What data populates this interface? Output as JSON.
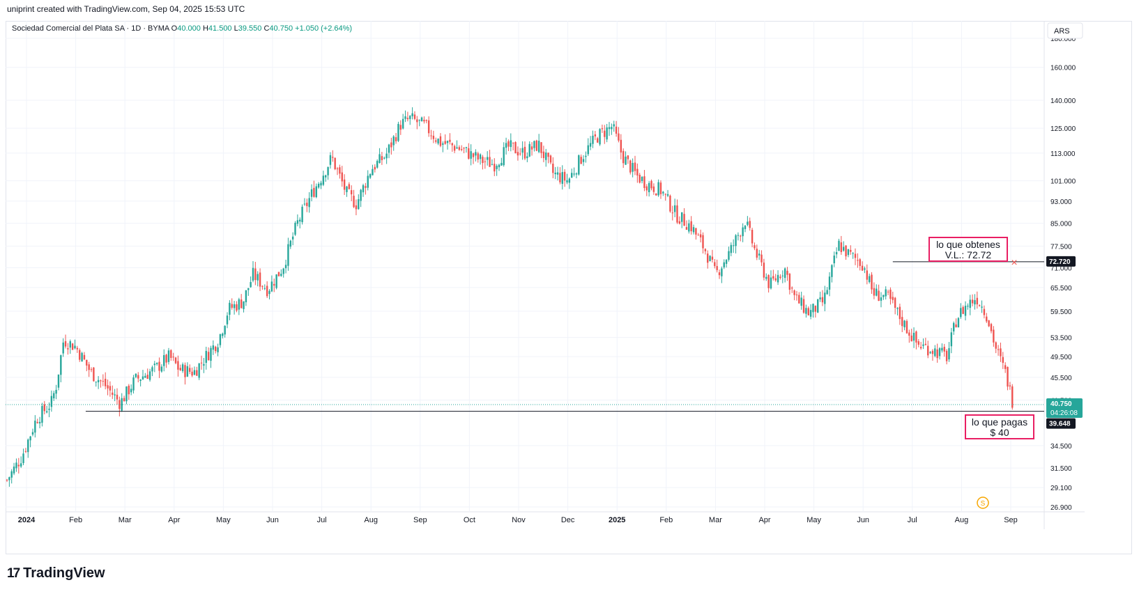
{
  "header": {
    "credit": "uniprint created with TradingView.com, Sep 04, 2025 15:53 UTC"
  },
  "legend": {
    "symbol": "Sociedad Comercial del Plata SA · 1D · BYMA",
    "o_label": "O",
    "o": "40.000",
    "h_label": "H",
    "h": "41.500",
    "l_label": "L",
    "l": "39.550",
    "c_label": "C",
    "c": "40.750",
    "change": "+1.050 (+2.64%)"
  },
  "currency": "ARS",
  "logo": {
    "text": "TradingView",
    "icon": "tv-logo-icon"
  },
  "colors": {
    "up": "#26a69a",
    "down": "#ef5350",
    "grid": "#f0f3fa",
    "price_badge": "#26a69a",
    "annotation_border": "#e91e63"
  },
  "chart_data": {
    "type": "candlestick",
    "scale": "log",
    "ylim": [
      26.9,
      180
    ],
    "y_ticks": [
      180,
      160,
      140,
      125,
      113,
      101,
      93,
      85,
      77.5,
      71,
      65.5,
      59.5,
      53.5,
      49.5,
      45.5,
      41.5,
      34.5,
      31.5,
      29.1,
      26.9
    ],
    "y_tick_labels": [
      "180.000",
      "160.000",
      "140.000",
      "125.000",
      "113.000",
      "101.000",
      "93.000",
      "85.000",
      "77.500",
      "71.000",
      "65.500",
      "59.500",
      "53.500",
      "49.500",
      "45.500",
      "41.500",
      "34.500",
      "31.500",
      "29.100",
      "26.900"
    ],
    "x_labels": [
      "2024",
      "Feb",
      "Mar",
      "Apr",
      "May",
      "Jun",
      "Jul",
      "Aug",
      "Sep",
      "Oct",
      "Nov",
      "Dec",
      "2025",
      "Feb",
      "Mar",
      "Apr",
      "May",
      "Jun",
      "Jul",
      "Aug",
      "Sep"
    ],
    "x_label_month_index": [
      0,
      1,
      2,
      3,
      4,
      5,
      6,
      7,
      8,
      9,
      10,
      11,
      12,
      13,
      14,
      15,
      16,
      17,
      18,
      19,
      20
    ],
    "approx_close_path": [
      [
        0.0,
        30.0
      ],
      [
        0.3,
        33.0
      ],
      [
        0.6,
        38.5
      ],
      [
        0.9,
        41.0
      ],
      [
        1.0,
        44.0
      ],
      [
        1.15,
        53.0
      ],
      [
        1.4,
        51.5
      ],
      [
        1.7,
        46.5
      ],
      [
        2.0,
        44.0
      ],
      [
        2.3,
        41.0
      ],
      [
        2.6,
        45.0
      ],
      [
        3.0,
        47.0
      ],
      [
        3.3,
        49.5
      ],
      [
        3.5,
        47.0
      ],
      [
        3.8,
        46.5
      ],
      [
        4.0,
        49.0
      ],
      [
        4.3,
        53.0
      ],
      [
        4.5,
        60.0
      ],
      [
        4.8,
        62.0
      ],
      [
        5.0,
        69.0
      ],
      [
        5.3,
        65.0
      ],
      [
        5.6,
        71.0
      ],
      [
        5.9,
        85.0
      ],
      [
        6.2,
        96.0
      ],
      [
        6.4,
        103.0
      ],
      [
        6.6,
        111.0
      ],
      [
        6.9,
        96.0
      ],
      [
        7.1,
        92.0
      ],
      [
        7.4,
        106.0
      ],
      [
        7.7,
        112.0
      ],
      [
        8.0,
        127.0
      ],
      [
        8.2,
        130.0
      ],
      [
        8.5,
        126.0
      ],
      [
        8.8,
        118.0
      ],
      [
        9.0,
        117.0
      ],
      [
        9.3,
        114.0
      ],
      [
        9.6,
        110.0
      ],
      [
        9.9,
        108.0
      ],
      [
        10.2,
        116.0
      ],
      [
        10.5,
        113.0
      ],
      [
        10.8,
        117.0
      ],
      [
        11.1,
        104.0
      ],
      [
        11.4,
        101.0
      ],
      [
        11.7,
        112.0
      ],
      [
        12.0,
        121.0
      ],
      [
        12.3,
        126.0
      ],
      [
        12.5,
        112.0
      ],
      [
        12.8,
        103.0
      ],
      [
        13.0,
        100.0
      ],
      [
        13.3,
        97.0
      ],
      [
        13.6,
        88.0
      ],
      [
        13.9,
        84.0
      ],
      [
        14.2,
        76.0
      ],
      [
        14.4,
        69.0
      ],
      [
        14.7,
        76.0
      ],
      [
        15.0,
        86.0
      ],
      [
        15.2,
        76.0
      ],
      [
        15.5,
        66.0
      ],
      [
        15.8,
        71.0
      ],
      [
        16.0,
        63.0
      ],
      [
        16.3,
        59.0
      ],
      [
        16.6,
        62.0
      ],
      [
        16.9,
        78.0
      ],
      [
        17.1,
        75.0
      ],
      [
        17.4,
        72.0
      ],
      [
        17.6,
        64.0
      ],
      [
        17.9,
        63.0
      ],
      [
        18.2,
        57.0
      ],
      [
        18.5,
        52.0
      ],
      [
        18.8,
        51.0
      ],
      [
        19.1,
        49.5
      ],
      [
        19.3,
        58.0
      ],
      [
        19.5,
        61.0
      ],
      [
        19.7,
        63.0
      ],
      [
        19.9,
        59.0
      ],
      [
        20.1,
        51.0
      ],
      [
        20.3,
        46.0
      ],
      [
        20.45,
        40.75
      ]
    ],
    "last_price": {
      "value": 40.75,
      "label": "40.750",
      "countdown": "04:26:08"
    },
    "horizontal_lines": [
      {
        "value": 39.648,
        "label": "39.648",
        "from_month": 1.6
      },
      {
        "value": 72.72,
        "label": "72.720",
        "from_month": 18.0
      }
    ],
    "annotations": [
      {
        "line1": "lo que obtenes",
        "line2": "V.L.: 72.72"
      },
      {
        "line1": "lo que pagas",
        "line2": "$ 40"
      }
    ],
    "marker_x": "×",
    "dividend_marker": "S"
  }
}
